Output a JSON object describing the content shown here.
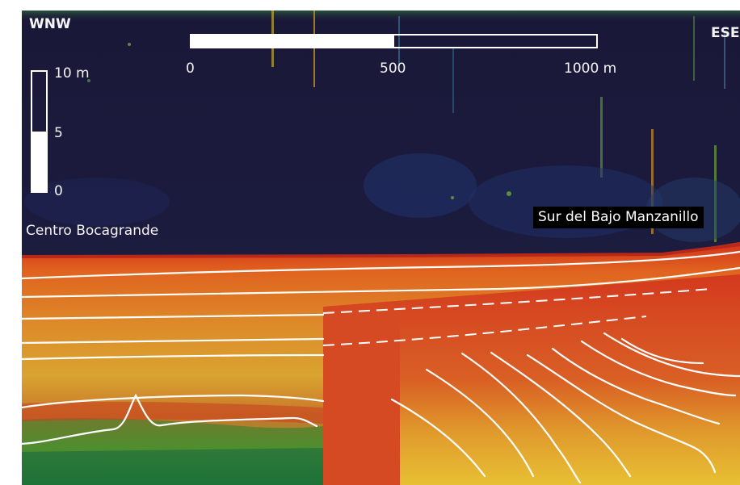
{
  "direction_labels": {
    "west": "WNW",
    "east": "ESE"
  },
  "horizontal_scale": {
    "tick_labels": [
      "0",
      "500",
      "1000 m"
    ]
  },
  "vertical_scale": {
    "tick_labels": [
      "10 m",
      "5",
      "0"
    ]
  },
  "location_labels": {
    "left": "Centro Bocagrande",
    "right": "Sur  del Bajo Manzanillo"
  },
  "colors": {
    "water_column": "#1b1a3c",
    "sediment_top": "#d9421f",
    "sediment_mid": "#e0a030",
    "sediment_deep": "#2f8a2a",
    "acoustic_blanking": "#d54a22",
    "reflector_lines": "#ffffff",
    "label_box": "#000000"
  },
  "icons": {
    "horizontal_scale": "scale-bar-icon",
    "vertical_scale": "vertical-scale-icon"
  }
}
